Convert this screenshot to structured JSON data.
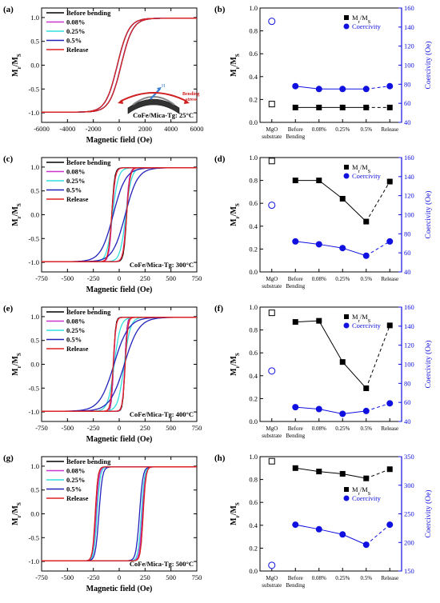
{
  "colors": {
    "black": "#000000",
    "magenta": "#cc33cc",
    "cyan": "#33dddd",
    "blue": "#2222bb",
    "red": "#dd2222",
    "coercivity": "#1010e0"
  },
  "left_common": {
    "xlabel": "Magnetic field (Oe)",
    "ylabel_main": "M",
    "ylabel_sub1": "r",
    "ylabel_mid": "/M",
    "ylabel_sub2": "S",
    "legend": [
      "Before bending",
      "0.08%",
      "0.25%",
      "0.5%",
      "Release"
    ]
  },
  "right_common": {
    "categories": [
      "MgO\nsubstrate",
      "Before\nBending",
      "0.08%",
      "0.25%",
      "0.5%",
      "Release"
    ],
    "ylabel_left": "Mr/MS",
    "ylabel_right": "Coercivity (Oe)",
    "legend_mr": "Mr/MS",
    "legend_hc": "Coercivity"
  },
  "inset": {
    "h_label": "H",
    "stress_label_1": "Bending",
    "stress_label_2": "stress"
  },
  "chart_data": [
    {
      "panel": "a",
      "type": "line",
      "label": "(a)",
      "annotation": "CoFe/Mica-Tg: 25°C",
      "xlim": [
        -6000,
        6000
      ],
      "xticks": [
        -6000,
        -4000,
        -2000,
        0,
        2000,
        4000,
        6000
      ],
      "ylim": [
        -1.2,
        1.2
      ],
      "yticks": [
        -1.0,
        -0.5,
        0.0,
        0.5,
        1.0
      ],
      "loops": [
        {
          "name": "Before bending",
          "hc": 150,
          "w": 900
        },
        {
          "name": "0.08%",
          "hc": 145,
          "w": 900
        },
        {
          "name": "0.25%",
          "hc": 145,
          "w": 900
        },
        {
          "name": "0.5%",
          "hc": 145,
          "w": 900
        },
        {
          "name": "Release",
          "hc": 150,
          "w": 900
        }
      ]
    },
    {
      "panel": "b",
      "type": "scatter",
      "label": "(b)",
      "ylim": [
        0,
        1.0
      ],
      "yticks": [
        0.0,
        0.2,
        0.4,
        0.6,
        0.8,
        1.0
      ],
      "y2lim": [
        40,
        160
      ],
      "y2ticks": [
        40,
        60,
        80,
        100,
        120,
        140,
        160
      ],
      "legend_pos": "top-right",
      "mr_ms": [
        0.16,
        0.13,
        0.13,
        0.13,
        0.13,
        0.13
      ],
      "coercivity": [
        146,
        78,
        75,
        75,
        75,
        78
      ]
    },
    {
      "panel": "c",
      "type": "line",
      "label": "(c)",
      "annotation": "CoFe/Mica-Tg: 300°C",
      "xlim": [
        -750,
        750
      ],
      "xticks": [
        -750,
        -500,
        -250,
        0,
        250,
        500,
        750
      ],
      "ylim": [
        -1.2,
        1.2
      ],
      "yticks": [
        -1.0,
        -0.5,
        0.0,
        0.5,
        1.0
      ],
      "loops": [
        {
          "name": "Before bending",
          "hc": 72,
          "w": 28
        },
        {
          "name": "0.08%",
          "hc": 68,
          "w": 30
        },
        {
          "name": "0.25%",
          "hc": 64,
          "w": 55
        },
        {
          "name": "0.5%",
          "hc": 58,
          "w": 120
        },
        {
          "name": "Release",
          "hc": 72,
          "w": 32
        }
      ]
    },
    {
      "panel": "d",
      "type": "scatter",
      "label": "(d)",
      "ylim": [
        0,
        1.0
      ],
      "yticks": [
        0.0,
        0.2,
        0.4,
        0.6,
        0.8,
        1.0
      ],
      "y2lim": [
        40,
        160
      ],
      "y2ticks": [
        40,
        60,
        80,
        100,
        120,
        140,
        160
      ],
      "legend_pos": "top-right",
      "mr_ms": [
        0.97,
        0.8,
        0.8,
        0.64,
        0.44,
        0.79
      ],
      "coercivity": [
        110,
        72,
        69,
        65,
        57,
        72
      ]
    },
    {
      "panel": "e",
      "type": "line",
      "label": "(e)",
      "annotation": "CoFe/Mica-Tg: 400°C",
      "xlim": [
        -750,
        750
      ],
      "xticks": [
        -750,
        -500,
        -250,
        0,
        250,
        500,
        750
      ],
      "ylim": [
        -1.2,
        1.2
      ],
      "yticks": [
        -1.0,
        -0.5,
        0.0,
        0.5,
        1.0
      ],
      "loops": [
        {
          "name": "Before bending",
          "hc": 55,
          "w": 20
        },
        {
          "name": "0.08%",
          "hc": 54,
          "w": 22
        },
        {
          "name": "0.25%",
          "hc": 48,
          "w": 60
        },
        {
          "name": "0.5%",
          "hc": 50,
          "w": 140
        },
        {
          "name": "Release",
          "hc": 58,
          "w": 25
        }
      ]
    },
    {
      "panel": "f",
      "type": "scatter",
      "label": "(f)",
      "ylim": [
        0,
        1.0
      ],
      "yticks": [
        0.0,
        0.2,
        0.4,
        0.6,
        0.8,
        1.0
      ],
      "y2lim": [
        40,
        160
      ],
      "y2ticks": [
        40,
        60,
        80,
        100,
        120,
        140,
        160
      ],
      "legend_pos": "top-right",
      "mr_ms": [
        0.95,
        0.87,
        0.88,
        0.52,
        0.29,
        0.84
      ],
      "coercivity": [
        93,
        55,
        53,
        48,
        51,
        59
      ]
    },
    {
      "panel": "g",
      "type": "line",
      "label": "(g)",
      "annotation": "CoFe/Mica-Tg: 500°C",
      "xlim": [
        -750,
        750
      ],
      "xticks": [
        -750,
        -500,
        -250,
        0,
        250,
        500,
        750
      ],
      "ylim": [
        -1.2,
        1.2
      ],
      "yticks": [
        -1.0,
        -0.5,
        0.0,
        0.5,
        1.0
      ],
      "loops": [
        {
          "name": "Before bending",
          "hc": 230,
          "w": 25
        },
        {
          "name": "0.08%",
          "hc": 222,
          "w": 27
        },
        {
          "name": "0.25%",
          "hc": 214,
          "w": 30
        },
        {
          "name": "0.5%",
          "hc": 196,
          "w": 33
        },
        {
          "name": "Release",
          "hc": 232,
          "w": 26
        }
      ]
    },
    {
      "panel": "h",
      "type": "scatter",
      "label": "(h)",
      "ylim": [
        0,
        1.0
      ],
      "yticks": [
        0.0,
        0.2,
        0.4,
        0.6,
        0.8,
        1.0
      ],
      "y2lim": [
        150,
        350
      ],
      "y2ticks": [
        150,
        200,
        250,
        300,
        350
      ],
      "legend_pos": "middle-right",
      "mr_ms": [
        0.96,
        0.9,
        0.87,
        0.85,
        0.81,
        0.89
      ],
      "coercivity": [
        160,
        231,
        223,
        214,
        196,
        231
      ]
    }
  ]
}
